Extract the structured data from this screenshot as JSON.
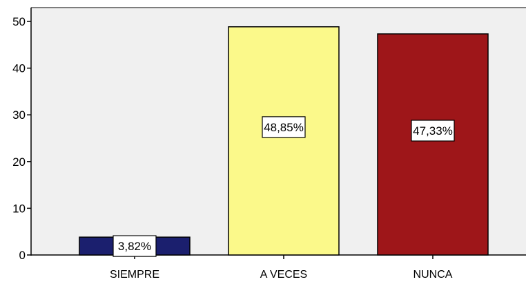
{
  "chart_data": {
    "type": "bar",
    "categories": [
      "SIEMPRE",
      "A VECES",
      "NUNCA"
    ],
    "values": [
      3.82,
      48.85,
      47.33
    ],
    "data_labels": [
      "3,82%",
      "48,85%",
      "47,33%"
    ],
    "colors": [
      "#1b1f6e",
      "#fbf98a",
      "#9e1619"
    ],
    "plot_background": "#f0f0f0",
    "ylim": [
      0,
      50
    ],
    "yticks": [
      0,
      10,
      20,
      30,
      40,
      50
    ],
    "ytick_labels": [
      "0",
      "10",
      "20",
      "30",
      "40",
      "50"
    ],
    "grid": false,
    "title": "",
    "xlabel": "",
    "ylabel": ""
  }
}
